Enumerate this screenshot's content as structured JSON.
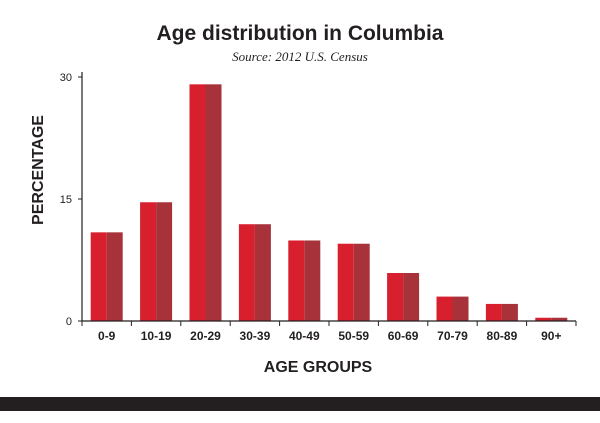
{
  "chart_data": {
    "type": "bar",
    "title": "Age distribution in Columbia",
    "subtitle": "Source: 2012 U.S. Census",
    "xlabel": "AGE GROUPS",
    "ylabel": "PERCENTAGE",
    "categories": [
      "0-9",
      "10-19",
      "20-29",
      "30-39",
      "40-49",
      "50-59",
      "60-69",
      "70-79",
      "80-89",
      "90+"
    ],
    "values": [
      10.9,
      14.6,
      29.1,
      11.9,
      9.9,
      9.5,
      5.9,
      3.0,
      2.1,
      0.4
    ],
    "ylim": [
      0,
      30
    ],
    "yticks": [
      "0",
      "15",
      "30"
    ],
    "colors": {
      "bar_light": "#d71f2e",
      "bar_dark": "#a8323a",
      "axis": "#231f20"
    }
  }
}
